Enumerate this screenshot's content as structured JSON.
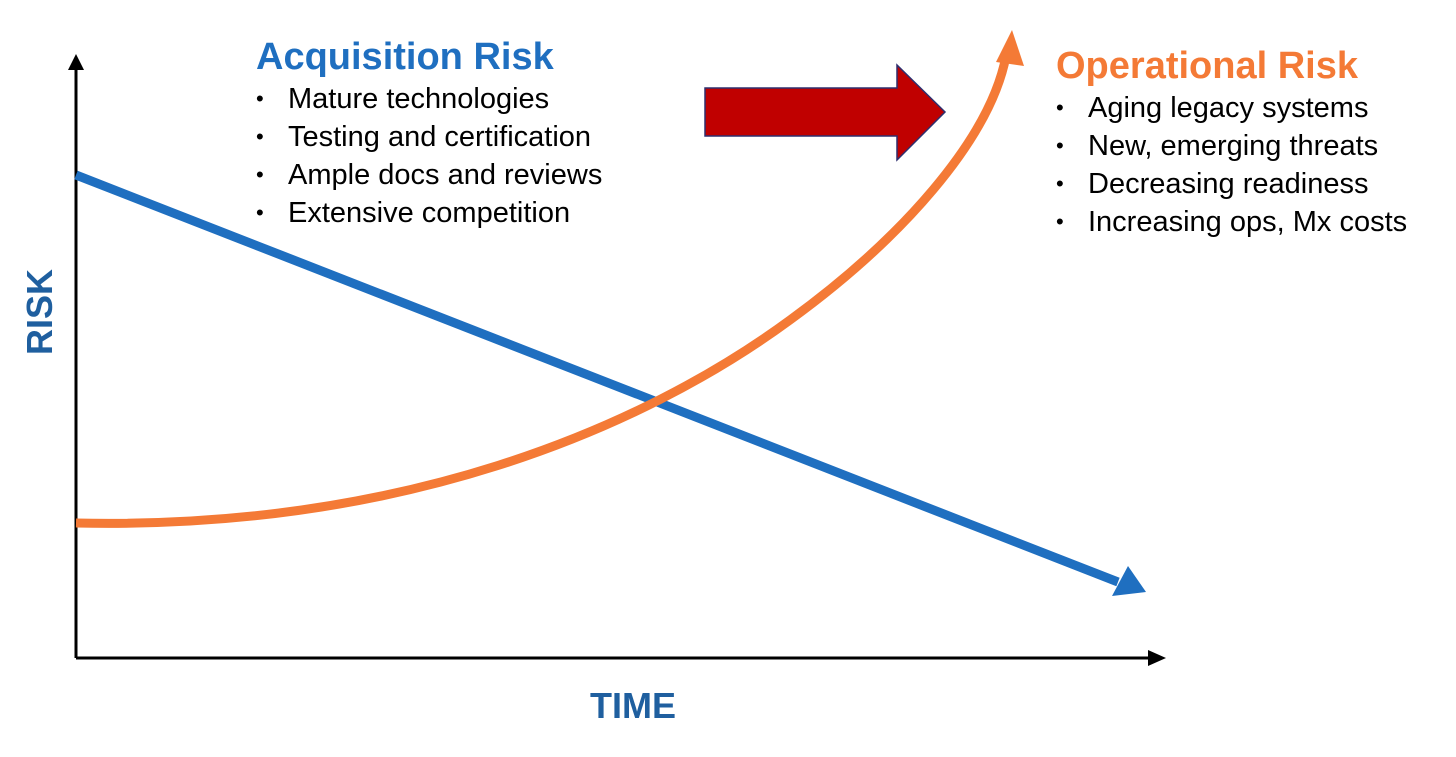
{
  "colors": {
    "acquisition": "#1f6fc0",
    "operational": "#f47a36",
    "transition_arrow": "#c00000",
    "transition_arrow_outline": "#2e2f6e",
    "axis": "#000000",
    "axis_label": "#1f5f9f"
  },
  "axes": {
    "y_label": "RISK",
    "x_label": "TIME"
  },
  "acquisition": {
    "title": "Acquisition Risk",
    "items": [
      "Mature technologies",
      "Testing and certification",
      "Ample docs and reviews",
      "Extensive competition"
    ]
  },
  "operational": {
    "title": "Operational Risk",
    "items": [
      "Aging legacy systems",
      "New, emerging threats",
      "Decreasing readiness",
      "Increasing ops, Mx costs"
    ]
  },
  "transition_arrow": {
    "direction": "right"
  }
}
